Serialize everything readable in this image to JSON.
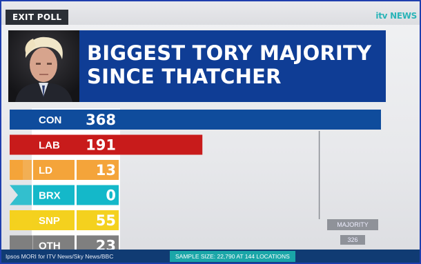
{
  "header": {
    "tag": "EXIT POLL",
    "logo": "itv NEWS"
  },
  "headline": {
    "line1": "BIGGEST TORY MAJORITY",
    "line2": "SINCE THATCHER"
  },
  "chart_data": {
    "type": "bar",
    "orientation": "horizontal",
    "categories": [
      "CON",
      "LAB",
      "LD",
      "BRX",
      "SNP",
      "OTH"
    ],
    "values": [
      368,
      191,
      13,
      0,
      55,
      23
    ],
    "value_labels": [
      "368",
      "191",
      "13",
      "0",
      "55",
      "23"
    ],
    "colors": [
      "#0f4c9c",
      "#c81b1b",
      "#f4a43a",
      "#14b8c9",
      "#f4d11e",
      "#7f7f7f"
    ],
    "xlim": [
      0,
      368
    ],
    "reference_line": {
      "label": "MAJORITY",
      "value": 326,
      "value_label": "326"
    }
  },
  "footer": {
    "source": "Ipsos MORI for ITV News/Sky News/BBC",
    "sample": "SAMPLE SIZE: 22,790 AT 144 LOCATIONS"
  }
}
